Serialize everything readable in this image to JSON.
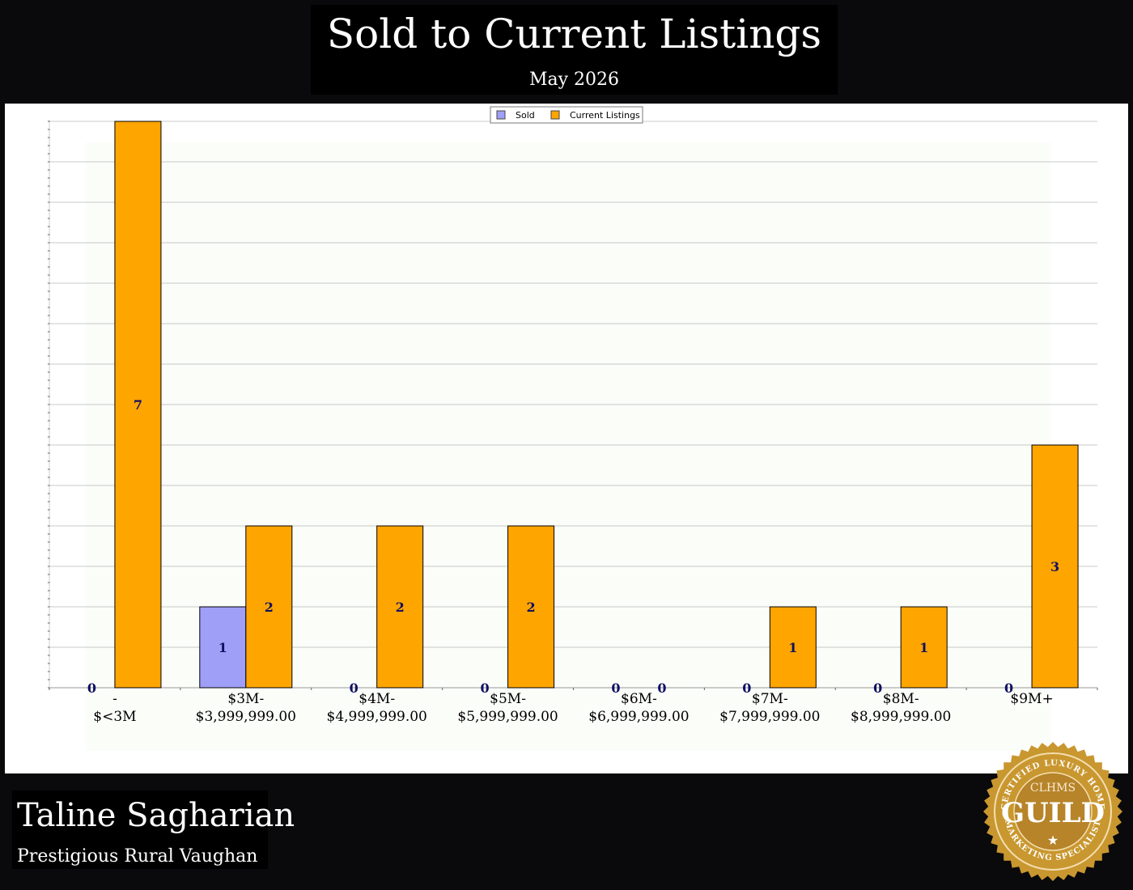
{
  "header": {
    "title": "Sold to Current Listings",
    "subtitle": "May 2026"
  },
  "agent": {
    "name": "Taline Sagharian",
    "area": "Prestigious Rural Vaughan"
  },
  "badge": {
    "icon": "clhms-guild-seal",
    "ring_text": "CERTIFIED LUXURY HOME MARKETING SPECIALIST",
    "top_text": "CLHMS",
    "main_text": "GUILD"
  },
  "colors": {
    "page_bg": "#0a090b",
    "sold": "#a09ff7",
    "current": "#ffa500",
    "label": "#101060",
    "gold": "#c9972f"
  },
  "chart_data": {
    "type": "bar",
    "title": "",
    "xlabel": "",
    "ylabel": "",
    "ylim": [
      0,
      7
    ],
    "grid": true,
    "legend": "top-center",
    "categories": [
      [
        "-",
        "$<3M"
      ],
      [
        "$3M-",
        "$3,999,999.00"
      ],
      [
        "$4M-",
        "$4,999,999.00"
      ],
      [
        "$5M-",
        "$5,999,999.00"
      ],
      [
        "$6M-",
        "$6,999,999.00"
      ],
      [
        "$7M-",
        "$7,999,999.00"
      ],
      [
        "$8M-",
        "$8,999,999.00"
      ],
      [
        "$9M+"
      ]
    ],
    "series": [
      {
        "name": "Sold",
        "color": "#a09ff7",
        "values": [
          0,
          1,
          0,
          0,
          0,
          0,
          0,
          0
        ]
      },
      {
        "name": "Current Listings",
        "color": "#ffa500",
        "values": [
          7,
          2,
          2,
          2,
          0,
          1,
          1,
          3
        ]
      }
    ]
  }
}
